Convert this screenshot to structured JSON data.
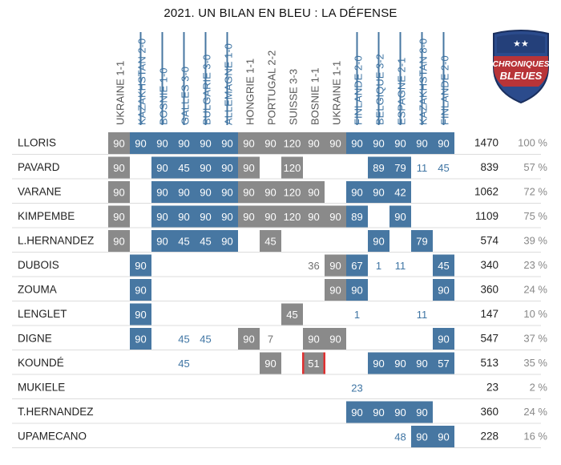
{
  "title": "2021. UN BILAN EN BLEU : LA DÉFENSE",
  "logo": {
    "line1": "CHRONIQUES",
    "line2": "BLEUES",
    "stars": "★★"
  },
  "colors": {
    "gray": "#8a8a8a",
    "blue": "#4777a2",
    "blue_text": "#3e74a3",
    "gray_text": "#6f6f6f",
    "red_marker": "#e03030",
    "row_line": "#dcdcdc"
  },
  "chart_data": {
    "type": "table",
    "matches": [
      {
        "label": "UKRAINE 1-1",
        "venue": "home"
      },
      {
        "label": "KAZAKHSTAN 2-0",
        "venue": "away"
      },
      {
        "label": "BOSNIE 1-0",
        "venue": "away"
      },
      {
        "label": "GALLES 3-0",
        "venue": "away"
      },
      {
        "label": "BULGARIE 3-0",
        "venue": "away"
      },
      {
        "label": "ALLEMAGNE 1-0",
        "venue": "away"
      },
      {
        "label": "HONGRIE 1-1",
        "venue": "home"
      },
      {
        "label": "PORTUGAL 2-2",
        "venue": "home"
      },
      {
        "label": "SUISSE 3-3",
        "venue": "home"
      },
      {
        "label": "BOSNIE 1-1",
        "venue": "home"
      },
      {
        "label": "UKRAINE 1-1",
        "venue": "home"
      },
      {
        "label": "FINLANDE 2-0",
        "venue": "away"
      },
      {
        "label": "BELGIQUE 3-2",
        "venue": "away"
      },
      {
        "label": "ESPAGNE 2-1",
        "venue": "away"
      },
      {
        "label": "KAZAKHSTAN 8-0",
        "venue": "away"
      },
      {
        "label": "FINLANDE 2-0",
        "venue": "away"
      }
    ],
    "players": [
      {
        "name": "LLORIS",
        "total": 1470,
        "pct": "100 %",
        "cells": [
          {
            "m": 90,
            "s": true
          },
          {
            "m": 90,
            "s": true
          },
          {
            "m": 90,
            "s": true
          },
          {
            "m": 90,
            "s": true
          },
          {
            "m": 90,
            "s": true
          },
          {
            "m": 90,
            "s": true
          },
          {
            "m": 90,
            "s": true
          },
          {
            "m": 90,
            "s": true
          },
          {
            "m": 120,
            "s": true
          },
          {
            "m": 90,
            "s": true
          },
          {
            "m": 90,
            "s": true
          },
          {
            "m": 90,
            "s": true
          },
          {
            "m": 90,
            "s": true
          },
          {
            "m": 90,
            "s": true
          },
          {
            "m": 90,
            "s": true
          },
          {
            "m": 90,
            "s": true
          }
        ]
      },
      {
        "name": "PAVARD",
        "total": 839,
        "pct": "57 %",
        "cells": [
          {
            "m": 90,
            "s": true
          },
          null,
          {
            "m": 90,
            "s": true
          },
          {
            "m": 45,
            "s": true
          },
          {
            "m": 90,
            "s": true
          },
          {
            "m": 90,
            "s": true
          },
          {
            "m": 90,
            "s": true
          },
          null,
          {
            "m": 120,
            "s": true
          },
          null,
          null,
          null,
          {
            "m": 89,
            "s": true
          },
          {
            "m": 79,
            "s": true
          },
          {
            "m": 11,
            "s": false
          },
          {
            "m": 45,
            "s": false
          }
        ]
      },
      {
        "name": "VARANE",
        "total": 1062,
        "pct": "72 %",
        "cells": [
          {
            "m": 90,
            "s": true
          },
          null,
          {
            "m": 90,
            "s": true
          },
          {
            "m": 90,
            "s": true
          },
          {
            "m": 90,
            "s": true
          },
          {
            "m": 90,
            "s": true
          },
          {
            "m": 90,
            "s": true
          },
          {
            "m": 90,
            "s": true
          },
          {
            "m": 120,
            "s": true
          },
          {
            "m": 90,
            "s": true
          },
          null,
          {
            "m": 90,
            "s": true
          },
          {
            "m": 90,
            "s": true
          },
          {
            "m": 42,
            "s": true
          },
          null,
          null
        ]
      },
      {
        "name": "KIMPEMBE",
        "total": 1109,
        "pct": "75 %",
        "cells": [
          {
            "m": 90,
            "s": true
          },
          null,
          {
            "m": 90,
            "s": true
          },
          {
            "m": 90,
            "s": true
          },
          {
            "m": 90,
            "s": true
          },
          {
            "m": 90,
            "s": true
          },
          {
            "m": 90,
            "s": true
          },
          {
            "m": 90,
            "s": true
          },
          {
            "m": 120,
            "s": true
          },
          {
            "m": 90,
            "s": true
          },
          {
            "m": 90,
            "s": true
          },
          {
            "m": 89,
            "s": true
          },
          null,
          {
            "m": 90,
            "s": true
          },
          null,
          null
        ]
      },
      {
        "name": "L.HERNANDEZ",
        "total": 574,
        "pct": "39 %",
        "cells": [
          {
            "m": 90,
            "s": true
          },
          null,
          {
            "m": 90,
            "s": true
          },
          {
            "m": 45,
            "s": true
          },
          {
            "m": 45,
            "s": true
          },
          {
            "m": 90,
            "s": true
          },
          null,
          {
            "m": 45,
            "s": true
          },
          null,
          null,
          null,
          null,
          {
            "m": 90,
            "s": true
          },
          null,
          {
            "m": 79,
            "s": true
          },
          null
        ]
      },
      {
        "name": "DUBOIS",
        "total": 340,
        "pct": "23 %",
        "cells": [
          null,
          {
            "m": 90,
            "s": true
          },
          null,
          null,
          null,
          null,
          null,
          null,
          null,
          {
            "m": 36,
            "s": false
          },
          {
            "m": 90,
            "s": true
          },
          {
            "m": 67,
            "s": true
          },
          {
            "m": 1,
            "s": false
          },
          {
            "m": 11,
            "s": false
          },
          null,
          {
            "m": 45,
            "s": true
          }
        ]
      },
      {
        "name": "ZOUMA",
        "total": 360,
        "pct": "24 %",
        "cells": [
          null,
          {
            "m": 90,
            "s": true
          },
          null,
          null,
          null,
          null,
          null,
          null,
          null,
          null,
          {
            "m": 90,
            "s": true
          },
          {
            "m": 90,
            "s": true
          },
          null,
          null,
          null,
          {
            "m": 90,
            "s": true
          }
        ]
      },
      {
        "name": "LENGLET",
        "total": 147,
        "pct": "10 %",
        "cells": [
          null,
          {
            "m": 90,
            "s": true
          },
          null,
          null,
          null,
          null,
          null,
          null,
          {
            "m": 45,
            "s": true
          },
          null,
          null,
          {
            "m": 1,
            "s": false
          },
          null,
          null,
          {
            "m": 11,
            "s": false
          },
          null
        ]
      },
      {
        "name": "DIGNE",
        "total": 547,
        "pct": "37 %",
        "cells": [
          null,
          {
            "m": 90,
            "s": true
          },
          null,
          {
            "m": 45,
            "s": false
          },
          {
            "m": 45,
            "s": false
          },
          null,
          {
            "m": 90,
            "s": true
          },
          {
            "m": 7,
            "s": false
          },
          null,
          {
            "m": 90,
            "s": true
          },
          {
            "m": 90,
            "s": true
          },
          null,
          null,
          null,
          null,
          {
            "m": 90,
            "s": true
          }
        ]
      },
      {
        "name": "KOUNDÉ",
        "total": 513,
        "pct": "35 %",
        "cells": [
          null,
          null,
          null,
          {
            "m": 45,
            "s": false
          },
          null,
          null,
          null,
          {
            "m": 90,
            "s": true
          },
          null,
          {
            "m": 51,
            "s": true,
            "red": true
          },
          null,
          null,
          {
            "m": 90,
            "s": true
          },
          {
            "m": 90,
            "s": true
          },
          {
            "m": 90,
            "s": true
          },
          {
            "m": 57,
            "s": true
          }
        ]
      },
      {
        "name": "MUKIELE",
        "total": 23,
        "pct": "2 %",
        "cells": [
          null,
          null,
          null,
          null,
          null,
          null,
          null,
          null,
          null,
          null,
          null,
          {
            "m": 23,
            "s": false
          },
          null,
          null,
          null,
          null
        ]
      },
      {
        "name": "T.HERNANDEZ",
        "total": 360,
        "pct": "24 %",
        "cells": [
          null,
          null,
          null,
          null,
          null,
          null,
          null,
          null,
          null,
          null,
          null,
          {
            "m": 90,
            "s": true
          },
          {
            "m": 90,
            "s": true
          },
          {
            "m": 90,
            "s": true
          },
          {
            "m": 90,
            "s": true
          },
          null
        ]
      },
      {
        "name": "UPAMECANO",
        "total": 228,
        "pct": "16 %",
        "cells": [
          null,
          null,
          null,
          null,
          null,
          null,
          null,
          null,
          null,
          null,
          null,
          null,
          null,
          {
            "m": 48,
            "s": false
          },
          {
            "m": 90,
            "s": true
          },
          {
            "m": 90,
            "s": true
          }
        ]
      }
    ]
  }
}
